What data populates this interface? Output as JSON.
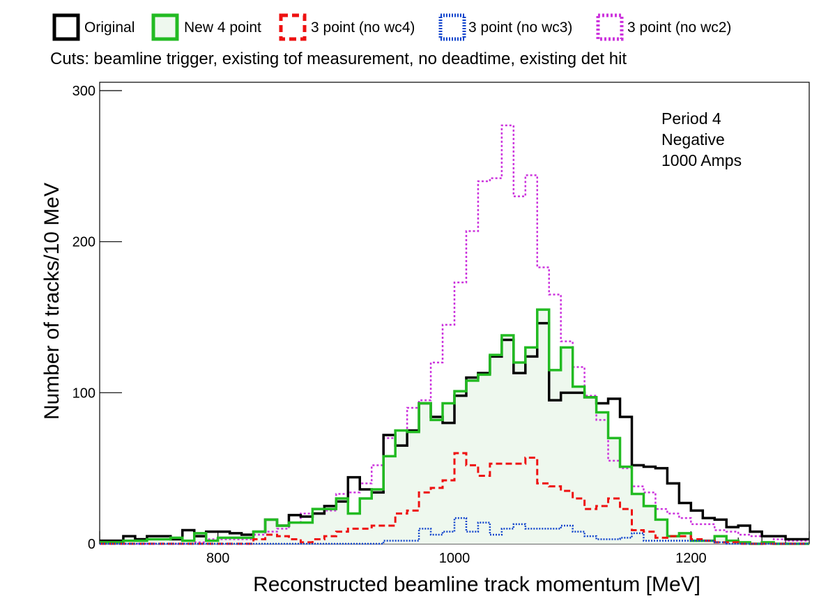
{
  "legend": [
    {
      "label": "Original",
      "color": "#000000",
      "style": "solid"
    },
    {
      "label": "New 4 point",
      "color": "#22bb22",
      "style": "solid",
      "fill": "#eef8ee"
    },
    {
      "label": "3 point (no wc4)",
      "color": "#ee1111",
      "style": "dashed"
    },
    {
      "label": "3 point (no wc3)",
      "color": "#1144cc",
      "style": "dotted"
    },
    {
      "label": "3 point (no wc2)",
      "color": "#cc33dd",
      "style": "dotted"
    }
  ],
  "cuts": "Cuts: beamline trigger, existing tof measurement, no deadtime, existing det hit",
  "annotation": [
    "Period 4",
    "Negative",
    "1000 Amps"
  ],
  "chart_data": {
    "type": "line",
    "style": "step-histogram",
    "xlabel": "Reconstructed beamline track momentum [MeV]",
    "ylabel": "Number of tracks/10 MeV",
    "xlim": [
      700,
      1300
    ],
    "ylim": [
      0,
      310
    ],
    "xticks": [
      800,
      1000,
      1200
    ],
    "yticks": [
      0,
      100,
      200,
      300
    ],
    "x": [
      700,
      710,
      720,
      730,
      740,
      750,
      760,
      770,
      780,
      790,
      800,
      810,
      820,
      830,
      840,
      850,
      860,
      870,
      880,
      890,
      900,
      910,
      920,
      930,
      940,
      950,
      960,
      970,
      980,
      990,
      1000,
      1010,
      1020,
      1030,
      1040,
      1050,
      1060,
      1070,
      1080,
      1090,
      1100,
      1110,
      1120,
      1130,
      1140,
      1150,
      1160,
      1170,
      1180,
      1190,
      1200,
      1210,
      1220,
      1230,
      1240,
      1250,
      1260,
      1270,
      1280,
      1290
    ],
    "series": [
      {
        "name": "Original",
        "color": "#000000",
        "dash": "",
        "values": [
          2,
          2,
          5,
          3,
          5,
          5,
          3,
          9,
          5,
          8,
          8,
          7,
          6,
          8,
          16,
          12,
          19,
          18,
          20,
          25,
          28,
          44,
          36,
          34,
          72,
          65,
          75,
          93,
          84,
          80,
          98,
          110,
          113,
          124,
          135,
          113,
          124,
          146,
          95,
          100,
          100,
          97,
          93,
          96,
          84,
          52,
          51,
          50,
          40,
          27,
          22,
          17,
          16,
          11,
          12,
          8,
          5,
          5,
          3,
          3
        ]
      },
      {
        "name": "New 4 point",
        "color": "#22bb22",
        "dash": "",
        "values": [
          1,
          1,
          2,
          2,
          3,
          3,
          4,
          2,
          7,
          2,
          4,
          4,
          4,
          8,
          16,
          12,
          14,
          14,
          23,
          23,
          30,
          20,
          30,
          36,
          58,
          75,
          74,
          93,
          82,
          93,
          101,
          108,
          112,
          125,
          138,
          120,
          130,
          155,
          115,
          130,
          104,
          97,
          87,
          70,
          51,
          33,
          25,
          16,
          5,
          7,
          2,
          2,
          5,
          2,
          1,
          0,
          1,
          0,
          0,
          0
        ]
      },
      {
        "name": "3 point (no wc4)",
        "color": "#ee1111",
        "dash": "9,5",
        "values": [
          0,
          0,
          0,
          0,
          0,
          0,
          0,
          0,
          0,
          0,
          0,
          0,
          0,
          3,
          6,
          5,
          3,
          1,
          3,
          5,
          8,
          10,
          10,
          12,
          12,
          20,
          22,
          34,
          37,
          42,
          60,
          52,
          45,
          53,
          53,
          53,
          57,
          40,
          38,
          35,
          30,
          23,
          25,
          30,
          23,
          9,
          8,
          4,
          5,
          5,
          3,
          2,
          1,
          1,
          0,
          0,
          0,
          0,
          0,
          0
        ]
      },
      {
        "name": "3 point (no wc3)",
        "color": "#1144cc",
        "dash": "2,2",
        "values": [
          0,
          0,
          0,
          0,
          0,
          0,
          0,
          0,
          0,
          0,
          0,
          0,
          0,
          0,
          0,
          0,
          0,
          0,
          0,
          0,
          0,
          0,
          0,
          0,
          2,
          2,
          2,
          10,
          6,
          8,
          17,
          8,
          14,
          6,
          10,
          13,
          10,
          10,
          10,
          12,
          8,
          5,
          3,
          3,
          4,
          7,
          2,
          2,
          2,
          2,
          2,
          2,
          1,
          0,
          0,
          0,
          0,
          0,
          0,
          0
        ]
      },
      {
        "name": "3 point (no wc2)",
        "color": "#cc33dd",
        "dash": "3,3",
        "values": [
          0,
          0,
          0,
          0,
          0,
          0,
          0,
          0,
          1,
          3,
          3,
          3,
          3,
          6,
          8,
          10,
          14,
          20,
          20,
          22,
          33,
          34,
          40,
          52,
          70,
          75,
          90,
          95,
          120,
          145,
          173,
          207,
          240,
          242,
          277,
          230,
          244,
          183,
          165,
          134,
          117,
          98,
          82,
          55,
          50,
          38,
          34,
          23,
          20,
          17,
          13,
          13,
          9,
          8,
          6,
          5,
          5,
          3,
          2,
          2
        ]
      }
    ]
  }
}
